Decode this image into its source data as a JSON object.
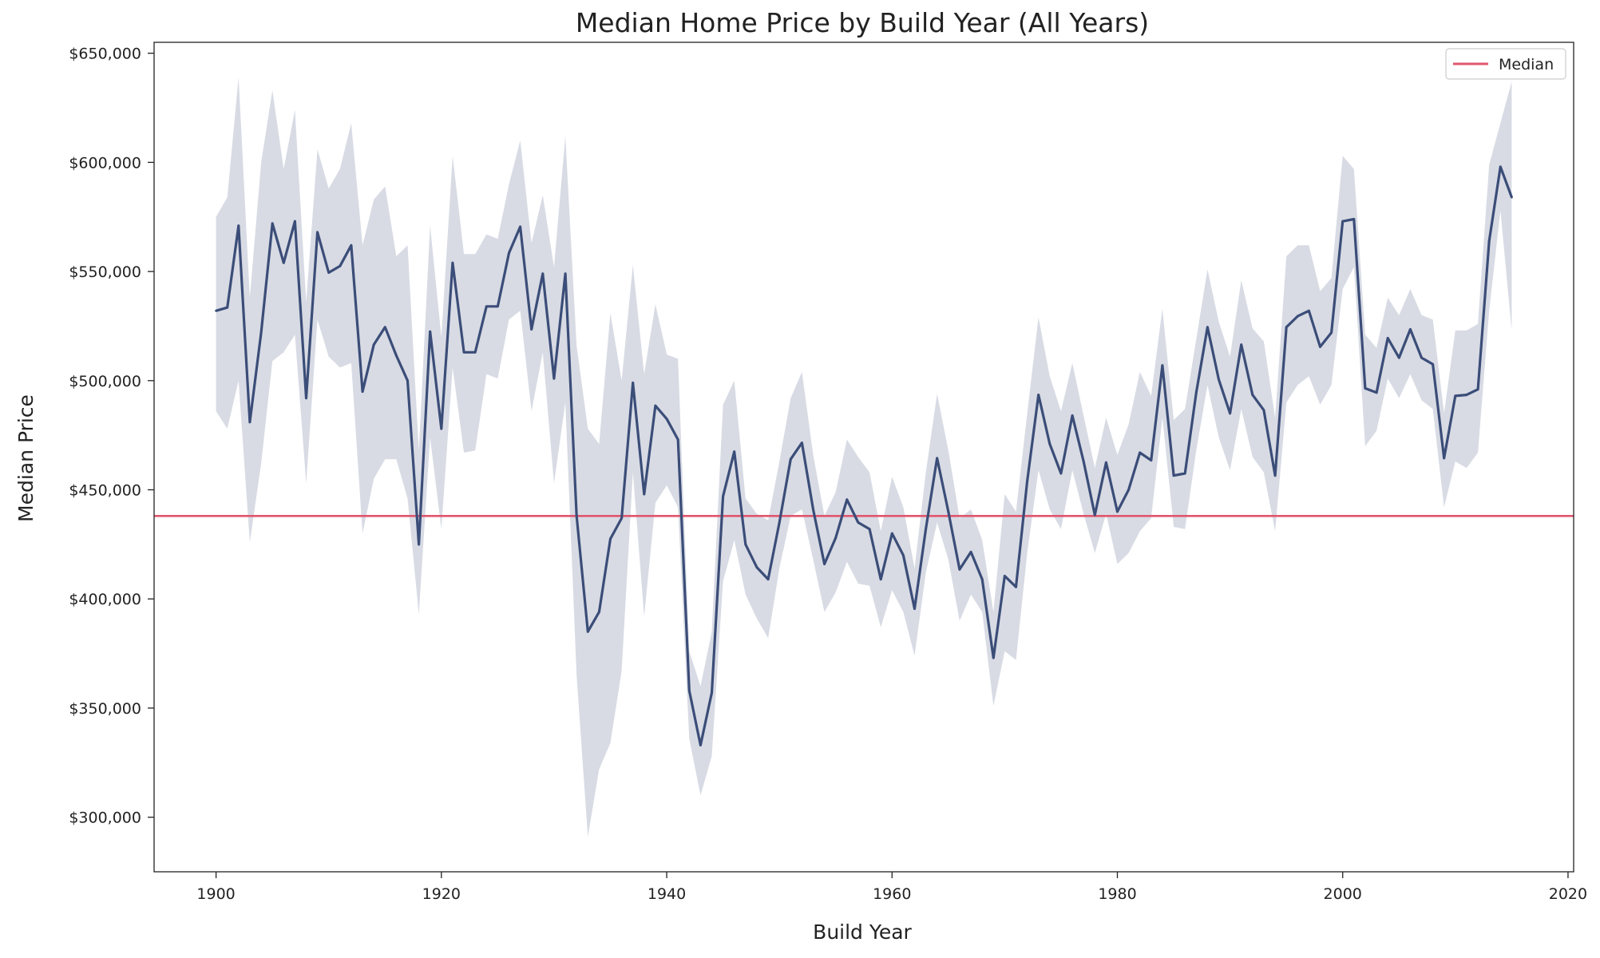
{
  "chart_data": {
    "type": "line",
    "title": "Median Home Price by Build Year (All Years)",
    "xlabel": "Build Year",
    "ylabel": "Median Price",
    "xlim": [
      1894.5,
      2020.5
    ],
    "ylim": [
      275000,
      655000
    ],
    "x_ticks": [
      1900,
      1920,
      1940,
      1960,
      1980,
      2000,
      2020
    ],
    "y_ticks": [
      300000,
      350000,
      400000,
      450000,
      500000,
      550000,
      600000,
      650000
    ],
    "y_tick_labels": [
      "$300,000",
      "$350,000",
      "$400,000",
      "$450,000",
      "$500,000",
      "$550,000",
      "$600,000",
      "$650,000"
    ],
    "x_tick_labels": [
      "1900",
      "1920",
      "1940",
      "1960",
      "1980",
      "2000",
      "2020"
    ],
    "grid": false,
    "legend_position": "top-right",
    "reference_line": {
      "name": "Median",
      "value": 438000,
      "color": "#e0566e"
    },
    "series": [
      {
        "color": "#3b4d78",
        "band_color": "#d8dbe4",
        "x": [
          1900,
          1901,
          1902,
          1903,
          1904,
          1905,
          1906,
          1907,
          1908,
          1909,
          1910,
          1911,
          1912,
          1913,
          1914,
          1915,
          1916,
          1917,
          1918,
          1919,
          1920,
          1921,
          1922,
          1923,
          1924,
          1925,
          1926,
          1927,
          1928,
          1929,
          1930,
          1931,
          1932,
          1933,
          1934,
          1935,
          1936,
          1937,
          1938,
          1939,
          1940,
          1941,
          1942,
          1943,
          1944,
          1945,
          1946,
          1947,
          1948,
          1949,
          1950,
          1951,
          1952,
          1953,
          1954,
          1955,
          1956,
          1957,
          1958,
          1959,
          1960,
          1961,
          1962,
          1963,
          1964,
          1965,
          1966,
          1967,
          1968,
          1969,
          1970,
          1971,
          1972,
          1973,
          1974,
          1975,
          1976,
          1977,
          1978,
          1979,
          1980,
          1981,
          1982,
          1983,
          1984,
          1985,
          1986,
          1987,
          1988,
          1989,
          1990,
          1991,
          1992,
          1993,
          1994,
          1995,
          1996,
          1997,
          1998,
          1999,
          2000,
          2001,
          2002,
          2003,
          2004,
          2005,
          2006,
          2007,
          2008,
          2009,
          2010,
          2011,
          2012,
          2013,
          2014,
          2015
        ],
        "values": [
          532000,
          533500,
          571000,
          481000,
          522000,
          572000,
          554000,
          573000,
          492000,
          568000,
          549500,
          552500,
          562000,
          495000,
          516500,
          524500,
          511500,
          500000,
          425000,
          522500,
          478000,
          554000,
          513000,
          513000,
          534000,
          534000,
          558500,
          570500,
          523500,
          549000,
          501000,
          549000,
          438000,
          385000,
          394000,
          427500,
          437000,
          499000,
          448000,
          488500,
          482500,
          473000,
          358000,
          333000,
          357000,
          447000,
          467500,
          425000,
          414500,
          409000,
          435000,
          464000,
          471500,
          441000,
          416000,
          428000,
          445500,
          435000,
          432000,
          409000,
          430000,
          420000,
          395500,
          432000,
          464500,
          440000,
          413500,
          421500,
          409000,
          373000,
          410500,
          405500,
          454000,
          493500,
          471000,
          457500,
          484000,
          463000,
          438500,
          462500,
          440000,
          450000,
          467000,
          463500,
          507000,
          456500,
          457500,
          494500,
          524500,
          500500,
          485000,
          516500,
          493500,
          486500,
          456500,
          524500,
          529500,
          532000,
          515500,
          522000,
          573000,
          574000,
          496500,
          494500,
          519500,
          510500,
          523500,
          510500,
          507500,
          464500,
          493000,
          493500,
          496000,
          564000,
          598000,
          584000
        ]
      }
    ],
    "band": {
      "upper": [
        575000,
        584000,
        639000,
        538000,
        600000,
        633000,
        597000,
        624000,
        536000,
        606000,
        588000,
        597000,
        618000,
        562000,
        583000,
        589000,
        557000,
        562000,
        468000,
        571000,
        520000,
        603000,
        558000,
        558000,
        567000,
        565000,
        590000,
        610000,
        563000,
        585000,
        552000,
        612000,
        516000,
        478000,
        471000,
        531000,
        500000,
        553000,
        503000,
        535000,
        512000,
        510000,
        376000,
        360000,
        385000,
        489000,
        500000,
        446000,
        439000,
        436000,
        463000,
        492000,
        504000,
        466000,
        438000,
        449000,
        473000,
        465000,
        458000,
        431000,
        456000,
        442000,
        414000,
        458000,
        494000,
        468000,
        437000,
        441000,
        427000,
        394000,
        448000,
        440000,
        485000,
        529000,
        502000,
        486000,
        508000,
        484000,
        460000,
        483000,
        466000,
        480000,
        504000,
        493000,
        533000,
        482000,
        487000,
        519000,
        551000,
        527000,
        511000,
        546000,
        524000,
        518000,
        483000,
        557000,
        562000,
        562000,
        541000,
        547000,
        603000,
        597000,
        521000,
        515000,
        538000,
        530000,
        542000,
        530000,
        528000,
        485000,
        523000,
        523000,
        526000,
        599000,
        618000,
        637000
      ],
      "lower": [
        486000,
        478000,
        500000,
        426000,
        462000,
        509000,
        513000,
        521000,
        453000,
        528000,
        511000,
        506000,
        508000,
        430000,
        455000,
        464000,
        464000,
        446000,
        393000,
        474000,
        432000,
        506000,
        467000,
        468000,
        503000,
        501000,
        528000,
        532000,
        486000,
        513000,
        453000,
        490000,
        365000,
        291000,
        322000,
        334000,
        367000,
        458000,
        392000,
        444000,
        452000,
        442000,
        336000,
        310000,
        328000,
        408000,
        427000,
        402000,
        391000,
        382000,
        414000,
        438000,
        441000,
        418000,
        394000,
        403000,
        417000,
        407000,
        406000,
        387000,
        404000,
        394000,
        374000,
        412000,
        435000,
        418000,
        390000,
        402000,
        394000,
        351000,
        376000,
        372000,
        421000,
        459000,
        441000,
        432000,
        459000,
        439000,
        421000,
        439000,
        416000,
        421000,
        431000,
        437000,
        483000,
        433000,
        432000,
        468000,
        498000,
        474000,
        459000,
        487000,
        465000,
        458000,
        431000,
        490000,
        498000,
        502000,
        489000,
        498000,
        542000,
        552000,
        470000,
        477000,
        501000,
        492000,
        503000,
        491000,
        487000,
        442000,
        463000,
        460000,
        467000,
        532000,
        578000,
        523000
      ]
    }
  }
}
